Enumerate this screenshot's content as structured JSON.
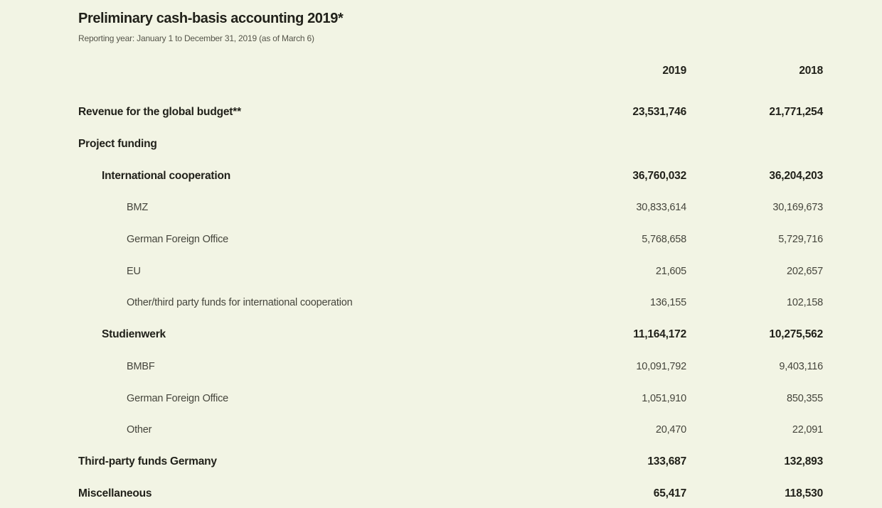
{
  "page": {
    "title": "Preliminary cash-basis accounting 2019*",
    "subtitle": "Reporting year: January 1 to December 31, 2019 (as of March 6)"
  },
  "table": {
    "columns": [
      "2019",
      "2018"
    ],
    "rows": [
      {
        "label": "Revenue for the global budget**",
        "v2019": "23,531,746",
        "v2018": "21,771,254",
        "level": 0,
        "bold": true
      },
      {
        "label": "Project funding",
        "v2019": "",
        "v2018": "",
        "level": 0,
        "bold": true
      },
      {
        "label": "International cooperation",
        "v2019": "36,760,032",
        "v2018": "36,204,203",
        "level": 1,
        "bold": true
      },
      {
        "label": "BMZ",
        "v2019": "30,833,614",
        "v2018": "30,169,673",
        "level": 2,
        "bold": false
      },
      {
        "label": "German Foreign Office",
        "v2019": "5,768,658",
        "v2018": "5,729,716",
        "level": 2,
        "bold": false
      },
      {
        "label": "EU",
        "v2019": "21,605",
        "v2018": "202,657",
        "level": 2,
        "bold": false
      },
      {
        "label": "Other/third party funds for international cooperation",
        "v2019": "136,155",
        "v2018": "102,158",
        "level": 2,
        "bold": false
      },
      {
        "label": "Studienwerk",
        "v2019": "11,164,172",
        "v2018": "10,275,562",
        "level": 1,
        "bold": true
      },
      {
        "label": "BMBF",
        "v2019": "10,091,792",
        "v2018": "9,403,116",
        "level": 2,
        "bold": false
      },
      {
        "label": "German Foreign Office",
        "v2019": "1,051,910",
        "v2018": "850,355",
        "level": 2,
        "bold": false
      },
      {
        "label": "Other",
        "v2019": "20,470",
        "v2018": "22,091",
        "level": 2,
        "bold": false
      },
      {
        "label": "Third-party funds Germany",
        "v2019": "133,687",
        "v2018": "132,893",
        "level": 0,
        "bold": true
      },
      {
        "label": "Miscellaneous",
        "v2019": "65,417",
        "v2018": "118,530",
        "level": 0,
        "bold": true
      }
    ]
  }
}
